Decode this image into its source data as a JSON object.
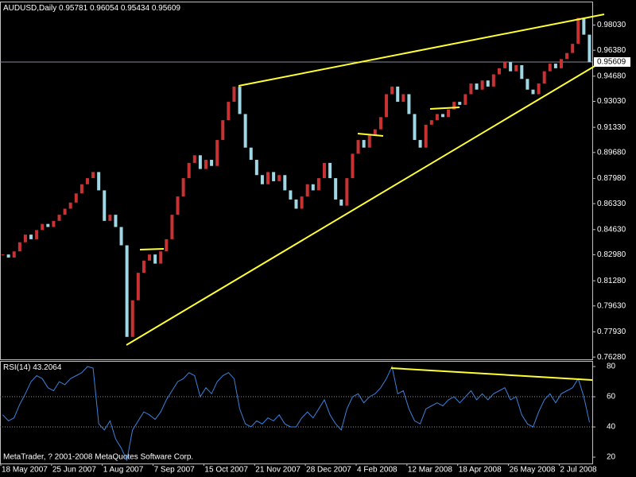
{
  "chart_data": {
    "type": "candlestick",
    "title": "AUDUSD,Daily",
    "ohlc": [
      0.95781,
      0.96054,
      0.95434,
      0.95609
    ],
    "last_price": 0.95609,
    "up_color": "#c83232",
    "down_color": "#9fd8e4",
    "categories": [
      "18 May 2007",
      null,
      null,
      null,
      null,
      null,
      null,
      null,
      null,
      "25 Jun 2007",
      null,
      null,
      null,
      null,
      null,
      null,
      null,
      null,
      "1 Aug 2007",
      null,
      null,
      null,
      null,
      null,
      null,
      null,
      null,
      "7 Sep 2007",
      null,
      null,
      null,
      null,
      null,
      null,
      null,
      null,
      "15 Oct 2007",
      null,
      null,
      null,
      null,
      null,
      null,
      null,
      null,
      "21 Nov 2007",
      null,
      null,
      null,
      null,
      null,
      null,
      null,
      null,
      "28 Dec 2007",
      null,
      null,
      null,
      null,
      null,
      null,
      null,
      null,
      "4 Feb 2008",
      null,
      null,
      null,
      null,
      null,
      null,
      null,
      null,
      "12 Mar 2008",
      null,
      null,
      null,
      null,
      null,
      null,
      null,
      null,
      "18 Apr 2008",
      null,
      null,
      null,
      null,
      null,
      null,
      null,
      null,
      "26 May 2008",
      null,
      null,
      null,
      null,
      null,
      null,
      null,
      null,
      "2 Jul 2008",
      null,
      null,
      null,
      null,
      null
    ],
    "close": [
      0.83,
      0.828,
      0.832,
      0.838,
      0.843,
      0.84,
      0.846,
      0.85,
      0.848,
      0.852,
      0.856,
      0.86,
      0.864,
      0.87,
      0.876,
      0.88,
      0.884,
      0.872,
      0.852,
      0.856,
      0.848,
      0.836,
      0.776,
      0.8,
      0.818,
      0.826,
      0.83,
      0.824,
      0.832,
      0.84,
      0.856,
      0.868,
      0.88,
      0.89,
      0.895,
      0.886,
      0.892,
      0.888,
      0.905,
      0.918,
      0.93,
      0.94,
      0.922,
      0.9,
      0.892,
      0.882,
      0.876,
      0.884,
      0.878,
      0.882,
      0.872,
      0.866,
      0.86,
      0.868,
      0.876,
      0.872,
      0.88,
      0.89,
      0.88,
      0.866,
      0.862,
      0.88,
      0.896,
      0.905,
      0.9,
      0.908,
      0.912,
      0.92,
      0.935,
      0.94,
      0.93,
      0.935,
      0.922,
      0.905,
      0.9,
      0.915,
      0.918,
      0.922,
      0.92,
      0.925,
      0.93,
      0.928,
      0.935,
      0.942,
      0.938,
      0.944,
      0.94,
      0.948,
      0.952,
      0.956,
      0.95,
      0.954,
      0.945,
      0.938,
      0.935,
      0.942,
      0.95,
      0.955,
      0.952,
      0.958,
      0.962,
      0.968,
      0.985,
      0.974,
      0.956
    ],
    "ylim": [
      0.7613,
      0.9941
    ],
    "yticks": [
      {
        "value": 0.9803,
        "label": "0.98030"
      },
      {
        "value": 0.9638,
        "label": "0.96380"
      },
      {
        "value": 0.9468,
        "label": "0.94680"
      },
      {
        "value": 0.9303,
        "label": "0.93030"
      },
      {
        "value": 0.9133,
        "label": "0.91330"
      },
      {
        "value": 0.8968,
        "label": "0.89680"
      },
      {
        "value": 0.8798,
        "label": "0.87980"
      },
      {
        "value": 0.8633,
        "label": "0.86330"
      },
      {
        "value": 0.8463,
        "label": "0.84630"
      },
      {
        "value": 0.8298,
        "label": "0.82980"
      },
      {
        "value": 0.8128,
        "label": "0.81280"
      },
      {
        "value": 0.7963,
        "label": "0.79630"
      },
      {
        "value": 0.7793,
        "label": "0.77930"
      },
      {
        "value": 0.7628,
        "label": "0.76280"
      }
    ],
    "rsi": {
      "title": "RSI(14)",
      "value": 43.2064,
      "color": "#3c82dc",
      "values": [
        48,
        44,
        46,
        55,
        62,
        70,
        74,
        72,
        66,
        64,
        70,
        68,
        72,
        74,
        76,
        80,
        79,
        42,
        38,
        44,
        32,
        26,
        18,
        38,
        44,
        50,
        48,
        45,
        50,
        58,
        64,
        70,
        72,
        76,
        74,
        60,
        66,
        62,
        70,
        74,
        76,
        72,
        52,
        42,
        40,
        44,
        42,
        46,
        44,
        48,
        42,
        40,
        40,
        46,
        50,
        46,
        52,
        58,
        48,
        42,
        38,
        52,
        60,
        62,
        56,
        60,
        62,
        66,
        72,
        80,
        62,
        64,
        52,
        44,
        42,
        52,
        54,
        56,
        54,
        58,
        60,
        56,
        60,
        64,
        58,
        62,
        58,
        62,
        64,
        66,
        58,
        60,
        48,
        42,
        40,
        50,
        58,
        62,
        56,
        62,
        64,
        66,
        72,
        60,
        43
      ],
      "ylim": [
        15.8,
        83.2
      ],
      "yticks": [
        80,
        60,
        40,
        20
      ],
      "grid": "dotted"
    },
    "footer": "MetaTrader, ? 2001-2008 MetaQuotes Software Corp."
  }
}
